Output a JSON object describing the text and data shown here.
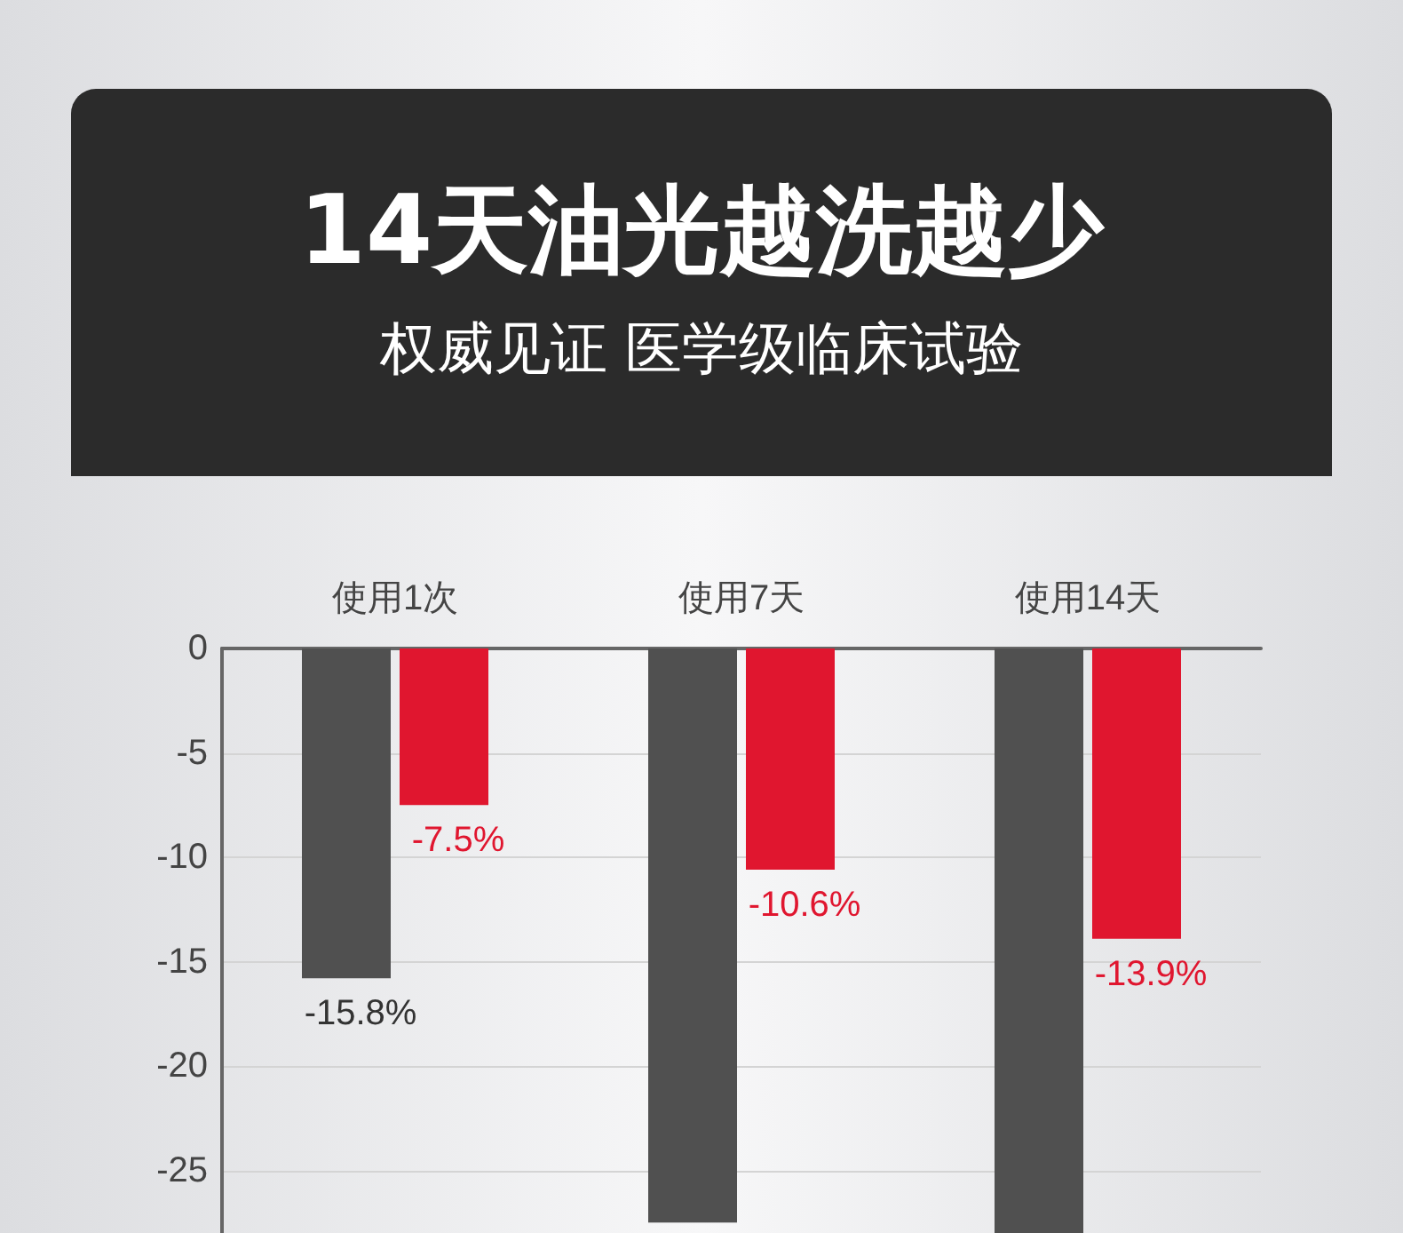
{
  "chart_data": {
    "type": "bar",
    "title": "14天油光越洗越少",
    "subtitle": "权威见证 医学级临床试验",
    "categories": [
      "使用1次",
      "使用7天",
      "使用14天"
    ],
    "series": [
      {
        "color": "#505050",
        "values": [
          -15.8,
          -27.5,
          -28
        ],
        "value_labels": [
          "-15.8%",
          null,
          null
        ]
      },
      {
        "color": "#e0162f",
        "values": [
          -7.5,
          -10.6,
          -13.9
        ],
        "value_labels": [
          "-7.5%",
          "-10.6%",
          "-13.9%"
        ]
      }
    ],
    "ylim": [
      -28,
      0
    ],
    "yticks": [
      0,
      -5,
      -10,
      -15,
      -20,
      -25
    ],
    "grid": "y"
  }
}
